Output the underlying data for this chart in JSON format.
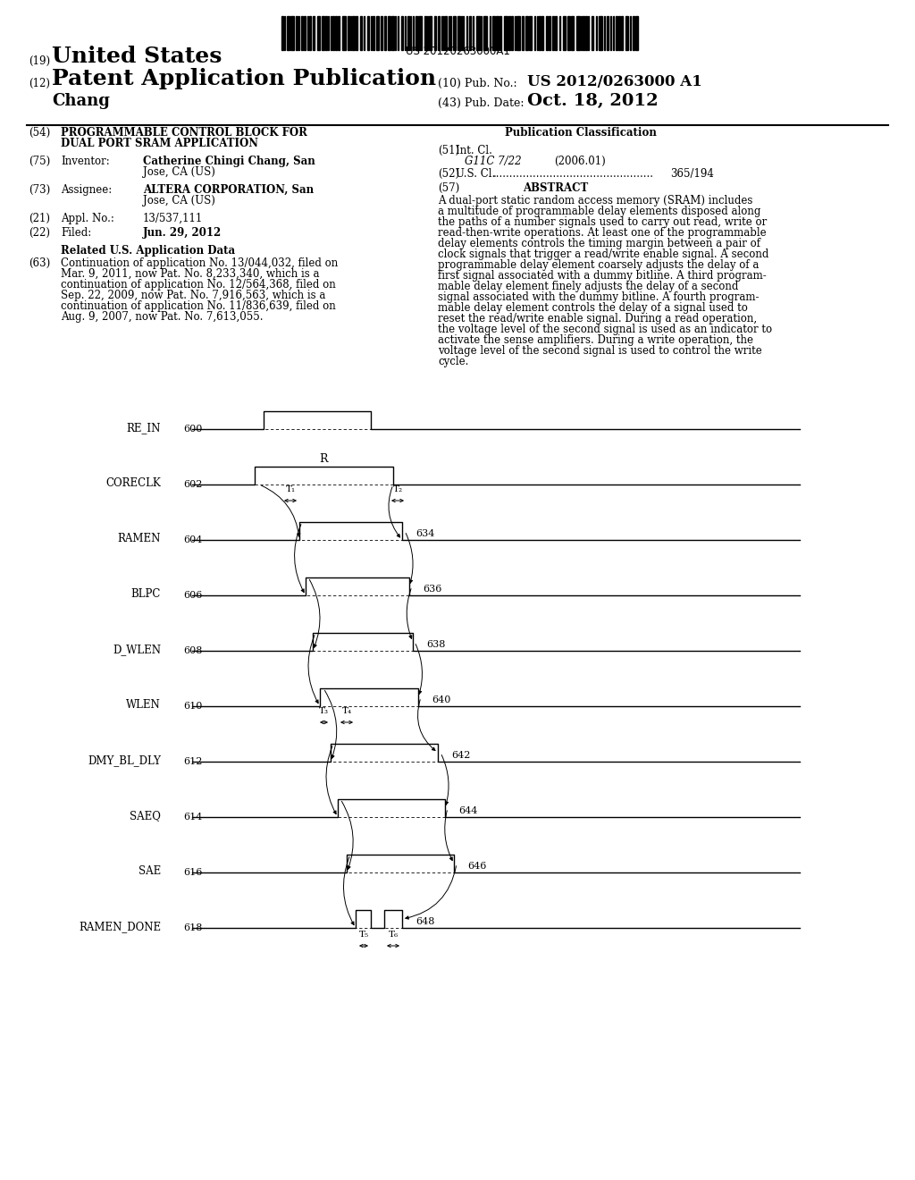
{
  "bg": "#ffffff",
  "barcode_text": "US 20120263000A1",
  "header_left1": "(19)",
  "header_title1": "United States",
  "header_left2": "(12)",
  "header_title2": "Patent Application Publication",
  "header_name": "Chang",
  "pub_no_label": "(10) Pub. No.:",
  "pub_no_value": "US 2012/0263000 A1",
  "pub_date_label": "(43) Pub. Date:",
  "pub_date_value": "Oct. 18, 2012",
  "tag54": "(54)",
  "title54a": "PROGRAMMABLE CONTROL BLOCK FOR",
  "title54b": "DUAL PORT SRAM APPLICATION",
  "tag75": "(75)",
  "label75": "Inventor:",
  "value75a": "Catherine Chingi Chang, San",
  "value75b": "Jose, CA (US)",
  "tag73": "(73)",
  "label73": "Assignee:",
  "value73a": "ALTERA CORPORATION, San",
  "value73b": "Jose, CA (US)",
  "tag21": "(21)",
  "label21": "Appl. No.:",
  "value21": "13/537,111",
  "tag22": "(22)",
  "label22": "Filed:",
  "value22": "Jun. 29, 2012",
  "related_title": "Related U.S. Application Data",
  "tag63": "(63)",
  "related_lines": [
    "Continuation of application No. 13/044,032, filed on",
    "Mar. 9, 2011, now Pat. No. 8,233,340, which is a",
    "continuation of application No. 12/564,368, filed on",
    "Sep. 22, 2009, now Pat. No. 7,916,563, which is a",
    "continuation of application No. 11/836,639, filed on",
    "Aug. 9, 2007, now Pat. No. 7,613,055."
  ],
  "pub_class_title": "Publication Classification",
  "tag51": "(51)",
  "label51": "Int. Cl.",
  "ipc_class": "G11C 7/22",
  "ipc_date": "(2006.01)",
  "tag52": "(52)",
  "label52": "U.S. Cl.",
  "us_cl_value": "365/194",
  "tag57": "(57)",
  "abstract_title": "ABSTRACT",
  "abstract_lines": [
    "A dual-port static random access memory (SRAM) includes",
    "a multitude of programmable delay elements disposed along",
    "the paths of a number signals used to carry out read, write or",
    "read-then-write operations. At least one of the programmable",
    "delay elements controls the timing margin between a pair of",
    "clock signals that trigger a read/write enable signal. A second",
    "programmable delay element coarsely adjusts the delay of a",
    "first signal associated with a dummy bitline. A third program-",
    "mable delay element finely adjusts the delay of a second",
    "signal associated with the dummy bitline. A fourth program-",
    "mable delay element controls the delay of a signal used to",
    "reset the read/write enable signal. During a read operation,",
    "the voltage level of the second signal is used as an indicator to",
    "activate the sense amplifiers. During a write operation, the",
    "voltage level of the second signal is used to control the write",
    "cycle."
  ],
  "signals": [
    "RE_IN",
    "CORECLK",
    "RAMEN",
    "BLPC",
    "D_WLEN",
    "WLEN",
    "DMY_BL_DLY",
    "SAEQ",
    "SAE",
    "RAMEN_DONE"
  ],
  "sig_nums_left": [
    "600",
    "602",
    "604",
    "606",
    "608",
    "610",
    "612",
    "614",
    "616",
    "618"
  ],
  "sig_nums_right": [
    "",
    "",
    "634",
    "636",
    "638",
    "640",
    "642",
    "644",
    "646",
    "648"
  ]
}
